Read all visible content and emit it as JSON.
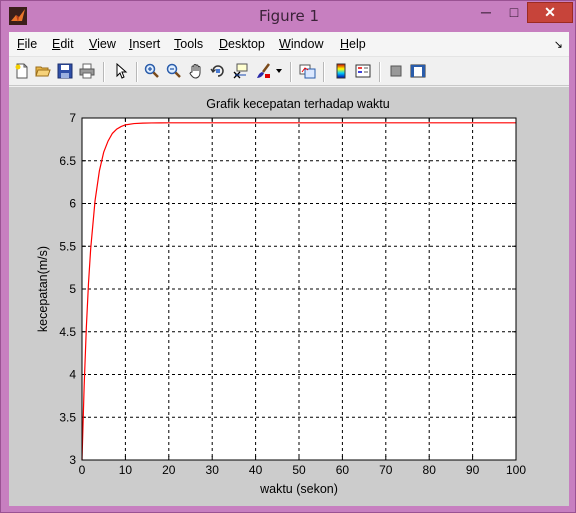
{
  "window": {
    "title": "Figure 1",
    "controls": {
      "minimize": "─",
      "maximize": "□",
      "close": "✕"
    }
  },
  "menubar": {
    "items": [
      {
        "label": "File",
        "accel": "F"
      },
      {
        "label": "Edit",
        "accel": "E"
      },
      {
        "label": "View",
        "accel": "V"
      },
      {
        "label": "Insert",
        "accel": "I"
      },
      {
        "label": "Tools",
        "accel": "T"
      },
      {
        "label": "Desktop",
        "accel": "D"
      },
      {
        "label": "Window",
        "accel": "W"
      },
      {
        "label": "Help",
        "accel": "H"
      }
    ],
    "dock_icon": "↘"
  },
  "toolbar": {
    "icons": [
      "new-figure-icon",
      "open-file-icon",
      "save-icon",
      "print-icon",
      "select-arrow-icon",
      "zoom-in-icon",
      "zoom-out-icon",
      "pan-hand-icon",
      "rotate-3d-icon",
      "data-cursor-icon",
      "brush-icon",
      "link-plot-icon",
      "colorbar-icon",
      "legend-icon",
      "hide-plot-tools-icon",
      "show-plot-tools-icon"
    ]
  },
  "chart_data": {
    "type": "line",
    "title": "Grafik kecepatan terhadap waktu",
    "xlabel": "waktu (sekon)",
    "ylabel": "kecepatan(m/s)",
    "xlim": [
      0,
      100
    ],
    "ylim": [
      3,
      7
    ],
    "xticks": [
      0,
      10,
      20,
      30,
      40,
      50,
      60,
      70,
      80,
      90,
      100
    ],
    "yticks": [
      3,
      3.5,
      4,
      4.5,
      5,
      5.5,
      6,
      6.5,
      7
    ],
    "ytick_labels": [
      "3",
      "3.5",
      "4",
      "4.5",
      "5",
      "5.5",
      "6",
      "6.5",
      "7"
    ],
    "grid": true,
    "grid_style": "dashed",
    "series": [
      {
        "color": "#ff0000",
        "x": [
          0,
          0.5,
          1,
          1.5,
          2,
          3,
          4,
          5,
          6,
          7,
          8,
          9,
          10,
          12,
          14,
          16,
          18,
          20,
          25,
          30,
          40,
          50,
          60,
          70,
          80,
          90,
          100
        ],
        "y": [
          3.0,
          3.87,
          4.55,
          5.07,
          5.47,
          6.03,
          6.38,
          6.6,
          6.73,
          6.82,
          6.87,
          6.9,
          6.92,
          6.935,
          6.94,
          6.942,
          6.943,
          6.944,
          6.944,
          6.944,
          6.944,
          6.944,
          6.944,
          6.944,
          6.944,
          6.944,
          6.944
        ]
      }
    ]
  }
}
